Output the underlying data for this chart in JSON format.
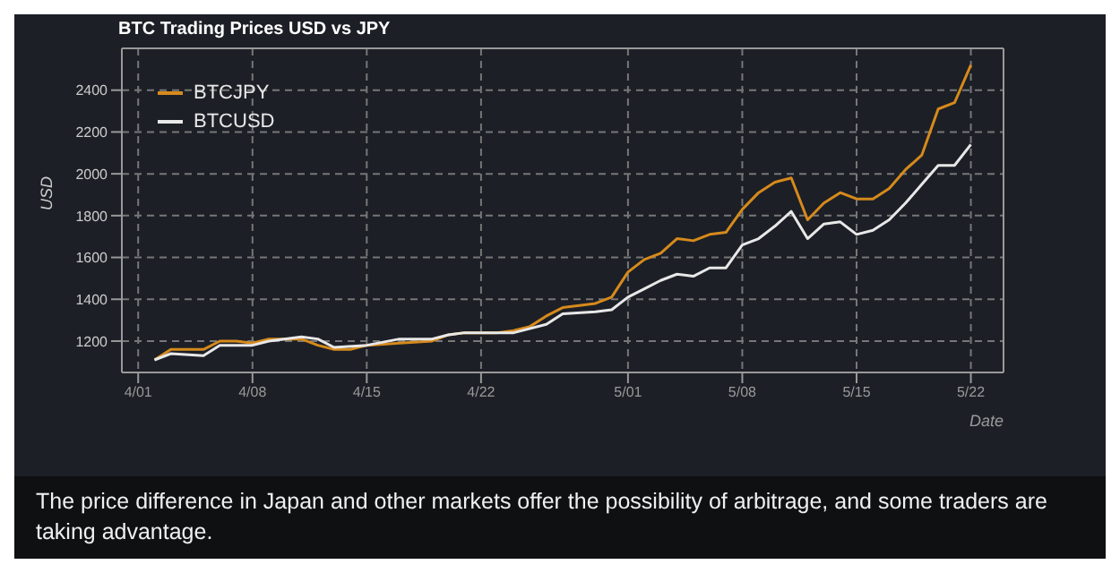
{
  "chart_data": {
    "type": "line",
    "title": "BTC Trading Prices USD vs JPY",
    "xlabel": "Date",
    "ylabel": "USD",
    "annotations": [
      "The price difference in Japan and other markets offer the possibility of arbitrage, and some traders are taking advantage."
    ],
    "series": [
      {
        "name": "BTCJPY",
        "color": "#d68a1c",
        "x": [
          "--04-02",
          "--04-03",
          "--04-05",
          "--04-06",
          "--04-07",
          "--04-08",
          "--04-09",
          "--04-11",
          "--04-12",
          "--04-13",
          "--04-14",
          "--04-15",
          "--04-17",
          "--04-19",
          "--04-20",
          "--04-21",
          "--04-23",
          "--04-24",
          "--04-25",
          "--04-26",
          "--04-27",
          "--04-28",
          "--04-29",
          "--04-30",
          "--05-01",
          "--05-02",
          "--05-03",
          "--05-04",
          "--05-05",
          "--05-06",
          "--05-07",
          "--05-08",
          "--05-09",
          "--05-10",
          "--05-11",
          "--05-12",
          "--05-13",
          "--05-14",
          "--05-15",
          "--05-16",
          "--05-17",
          "--05-18",
          "--05-19",
          "--05-20",
          "--05-21",
          "--05-22"
        ],
        "values": [
          1110,
          1160,
          1160,
          1200,
          1200,
          1190,
          1210,
          1210,
          1180,
          1160,
          1160,
          1180,
          1190,
          1200,
          1230,
          1240,
          1240,
          1250,
          1270,
          1320,
          1360,
          1370,
          1380,
          1410,
          1530,
          1590,
          1620,
          1690,
          1680,
          1710,
          1720,
          1830,
          1910,
          1960,
          1980,
          1780,
          1860,
          1910,
          1880,
          1880,
          1930,
          2020,
          2090,
          2310,
          2340,
          2520
        ]
      },
      {
        "name": "BTCUSD",
        "color": "#e8e8e8",
        "x": [
          "--04-02",
          "--04-03",
          "--04-05",
          "--04-06",
          "--04-08",
          "--04-09",
          "--04-11",
          "--04-12",
          "--04-13",
          "--04-15",
          "--04-17",
          "--04-19",
          "--04-20",
          "--04-21",
          "--04-23",
          "--04-24",
          "--04-26",
          "--04-27",
          "--04-29",
          "--04-30",
          "--05-01",
          "--05-02",
          "--05-03",
          "--05-04",
          "--05-05",
          "--05-06",
          "--05-07",
          "--05-08",
          "--05-09",
          "--05-10",
          "--05-11",
          "--05-12",
          "--05-13",
          "--05-14",
          "--05-15",
          "--05-16",
          "--05-17",
          "--05-18",
          "--05-19",
          "--05-20",
          "--05-21",
          "--05-22"
        ],
        "values": [
          1110,
          1140,
          1130,
          1180,
          1180,
          1200,
          1220,
          1210,
          1170,
          1180,
          1210,
          1210,
          1230,
          1240,
          1240,
          1240,
          1280,
          1330,
          1340,
          1350,
          1410,
          1450,
          1490,
          1520,
          1510,
          1550,
          1550,
          1660,
          1690,
          1750,
          1820,
          1690,
          1760,
          1770,
          1710,
          1730,
          1780,
          1860,
          1950,
          2040,
          2040,
          2140
        ]
      }
    ],
    "xlim": [
      "--03-31",
      "--05-24"
    ],
    "xticks": [
      {
        "value": "--04-01",
        "label": "4/01"
      },
      {
        "value": "--04-08",
        "label": "4/08"
      },
      {
        "value": "--04-15",
        "label": "4/15"
      },
      {
        "value": "--04-22",
        "label": "4/22"
      },
      {
        "value": "--05-01",
        "label": "5/01"
      },
      {
        "value": "--05-08",
        "label": "5/08"
      },
      {
        "value": "--05-15",
        "label": "5/15"
      },
      {
        "value": "--05-22",
        "label": "5/22"
      }
    ],
    "ylim": [
      1050,
      2600
    ],
    "yticks": [
      1200,
      1400,
      1600,
      1800,
      2000,
      2200,
      2400
    ],
    "grid": true,
    "legend": "top left",
    "marker": "none",
    "line_style": "solid"
  }
}
